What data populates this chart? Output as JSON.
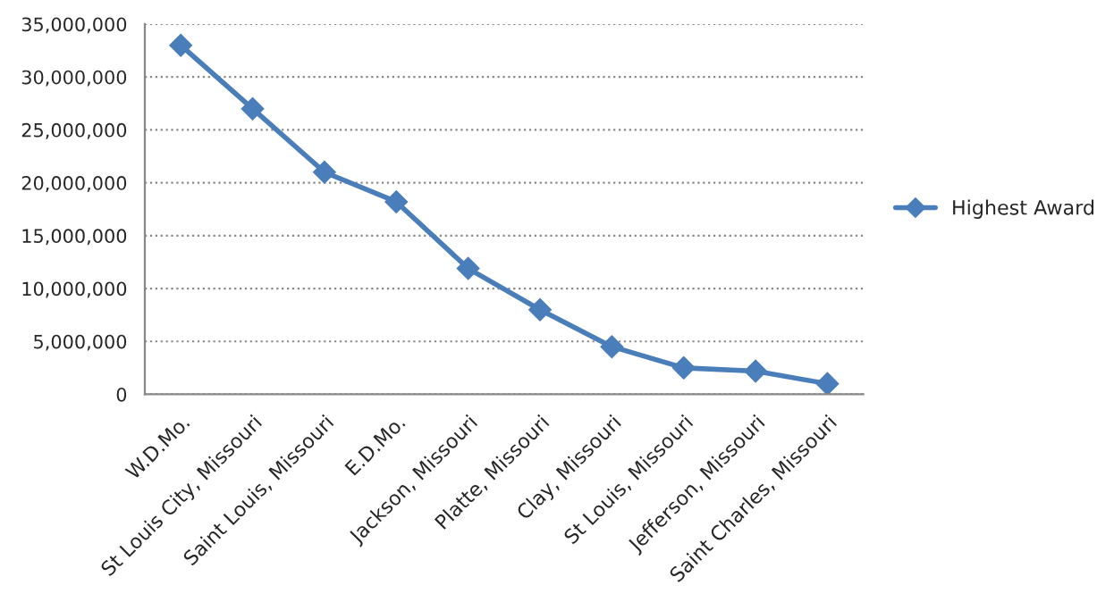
{
  "chart_data": {
    "type": "line",
    "categories": [
      "W.D.Mo.",
      "St Louis City, Missouri",
      "Saint Louis, Missouri",
      "E.D.Mo.",
      "Jackson, Missouri",
      "Platte, Missouri",
      "Clay, Missouri",
      "St Louis, Missouri",
      "Jefferson, Missouri",
      "Saint Charles, Missouri"
    ],
    "series": [
      {
        "name": "Highest Award",
        "color": "#4a7ebb",
        "values": [
          33000000,
          27000000,
          21000000,
          18200000,
          11900000,
          8000000,
          4500000,
          2500000,
          2200000,
          1000000
        ]
      }
    ],
    "ylim": [
      0,
      35000000
    ],
    "yticks": [
      {
        "value": 0,
        "label": "0"
      },
      {
        "value": 5000000,
        "label": "5,000,000"
      },
      {
        "value": 10000000,
        "label": "10,000,000"
      },
      {
        "value": 15000000,
        "label": "15,000,000"
      },
      {
        "value": 20000000,
        "label": "20,000,000"
      },
      {
        "value": 25000000,
        "label": "25,000,000"
      },
      {
        "value": 30000000,
        "label": "30,000,000"
      },
      {
        "value": 35000000,
        "label": "35,000,000"
      }
    ],
    "grid": "y",
    "legend": "right",
    "marker": "diamond",
    "line_style": "solid"
  }
}
